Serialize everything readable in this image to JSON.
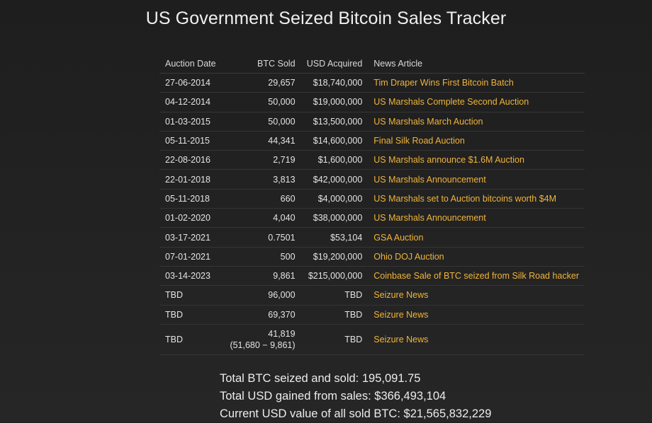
{
  "title": "US Government Seized Bitcoin Sales Tracker",
  "table": {
    "headers": {
      "date": "Auction Date",
      "btc": "BTC Sold",
      "usd": "USD Acquired",
      "news": "News Article"
    },
    "rows": [
      {
        "date": "27-06-2014",
        "btc": "29,657",
        "btc_sub": "",
        "usd": "$18,740,000",
        "news": "Tim Draper Wins First Bitcoin Batch"
      },
      {
        "date": "04-12-2014",
        "btc": "50,000",
        "btc_sub": "",
        "usd": "$19,000,000",
        "news": "US Marshals Complete Second Auction"
      },
      {
        "date": "01-03-2015",
        "btc": "50,000",
        "btc_sub": "",
        "usd": "$13,500,000",
        "news": "US Marshals March Auction"
      },
      {
        "date": "05-11-2015",
        "btc": "44,341",
        "btc_sub": "",
        "usd": "$14,600,000",
        "news": "Final Silk Road Auction"
      },
      {
        "date": "22-08-2016",
        "btc": "2,719",
        "btc_sub": "",
        "usd": "$1,600,000",
        "news": "US Marshals announce $1.6M Auction"
      },
      {
        "date": "22-01-2018",
        "btc": "3,813",
        "btc_sub": "",
        "usd": "$42,000,000",
        "news": "US Marshals Announcement"
      },
      {
        "date": "05-11-2018",
        "btc": "660",
        "btc_sub": "",
        "usd": "$4,000,000",
        "news": "US Marshals set to Auction bitcoins worth $4M"
      },
      {
        "date": "01-02-2020",
        "btc": "4,040",
        "btc_sub": "",
        "usd": "$38,000,000",
        "news": "US Marshals Announcement"
      },
      {
        "date": "03-17-2021",
        "btc": "0.7501",
        "btc_sub": "",
        "usd": "$53,104",
        "news": "GSA Auction"
      },
      {
        "date": "07-01-2021",
        "btc": "500",
        "btc_sub": "",
        "usd": "$19,200,000",
        "news": "Ohio DOJ Auction"
      },
      {
        "date": "03-14-2023",
        "btc": "9,861",
        "btc_sub": "",
        "usd": "$215,000,000",
        "news": "Coinbase Sale of BTC seized from Silk Road hacker"
      },
      {
        "date": "TBD",
        "btc": "96,000",
        "btc_sub": "",
        "usd": "TBD",
        "news": "Seizure News"
      },
      {
        "date": "TBD",
        "btc": "69,370",
        "btc_sub": "",
        "usd": "TBD",
        "news": "Seizure News"
      },
      {
        "date": "TBD",
        "btc": "41,819",
        "btc_sub": "(51,680 − 9,861)",
        "usd": "TBD",
        "news": "Seizure News"
      }
    ]
  },
  "totals": {
    "btc": "Total BTC seized and sold: 195,091.75",
    "usd": "Total USD gained from sales: $366,493,104",
    "current": "Current USD value of all sold BTC: $21,565,832,229"
  },
  "colors": {
    "link": "#f0b43a",
    "background": "#1e1e1e"
  }
}
